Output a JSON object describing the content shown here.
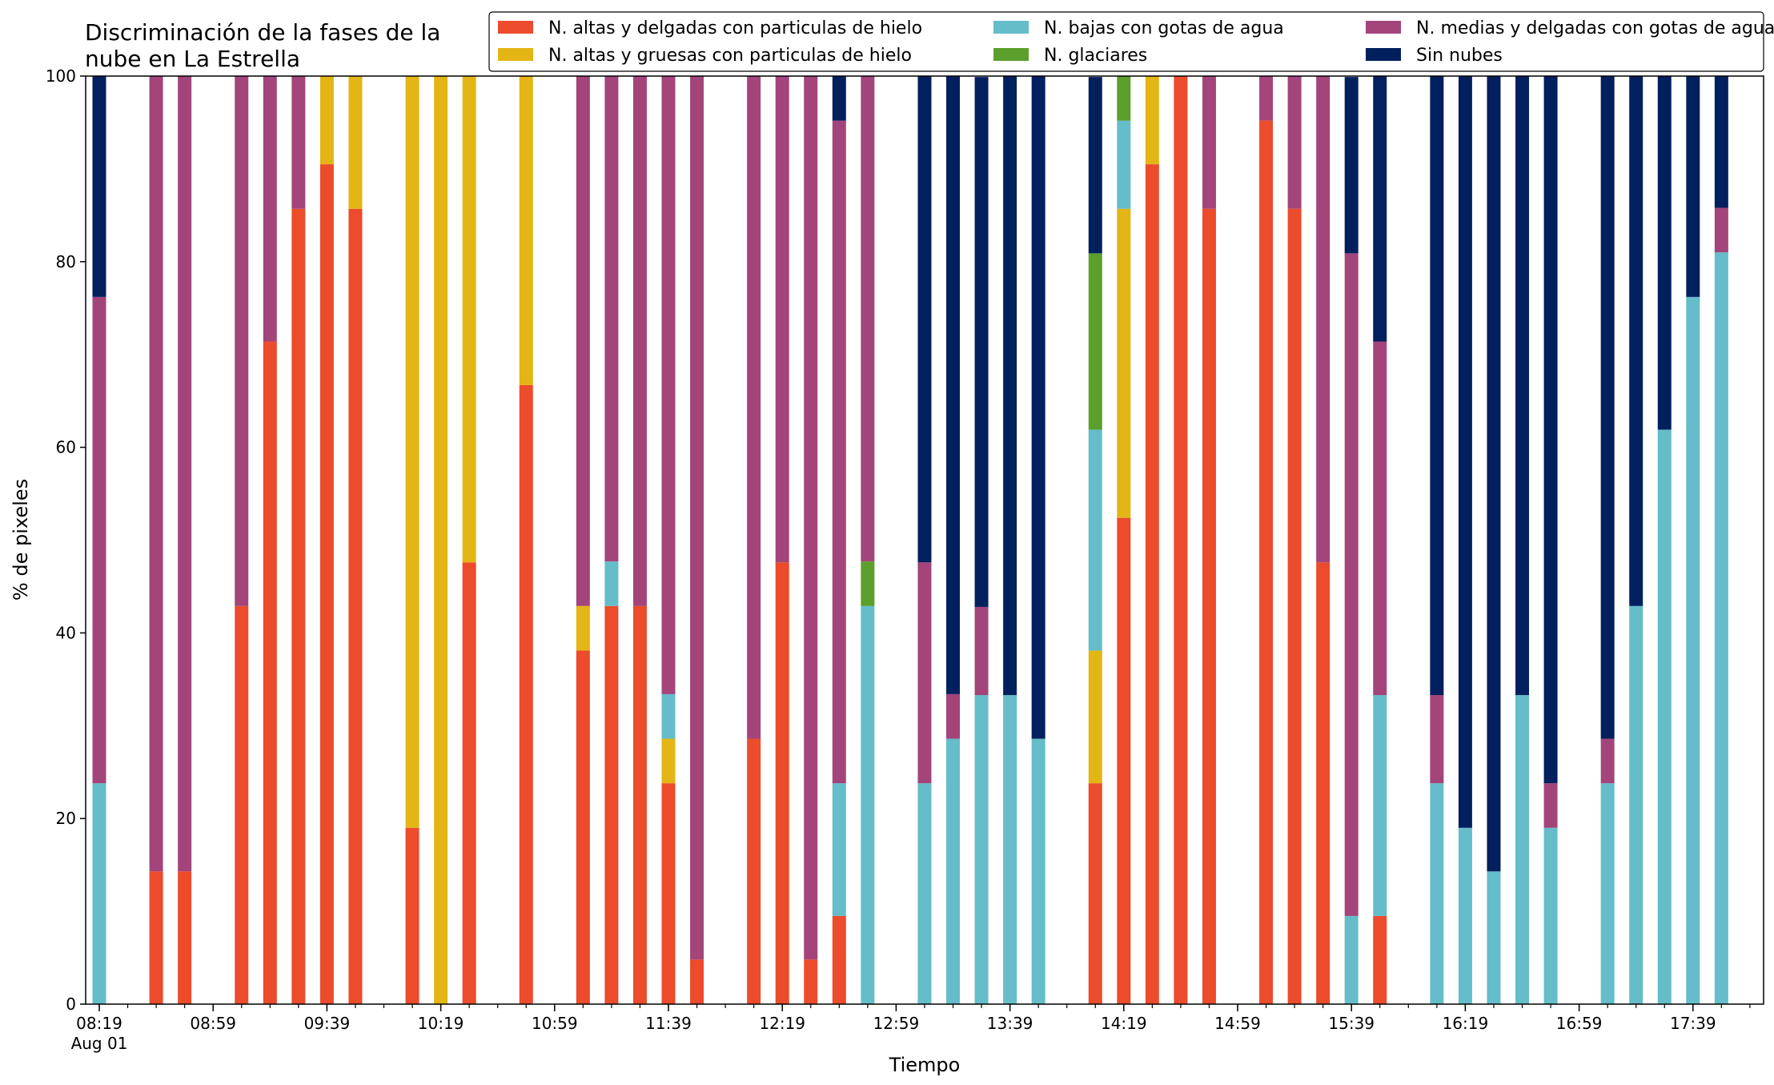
{
  "chart_data": {
    "type": "bar",
    "stacked": true,
    "title": "Discriminación de la fases de la nube en La Estrella",
    "title_lines": [
      "Discriminación de la fases de la",
      "nube en La Estrella"
    ],
    "xlabel": "Tiempo",
    "ylabel": "% de pixeles",
    "ylim": [
      0,
      100
    ],
    "y_ticks": [
      0,
      20,
      40,
      60,
      80,
      100
    ],
    "x_ticks": [
      {
        "label": "08:19",
        "sublabel": "Aug 01",
        "slot": 0
      },
      {
        "label": "08:59",
        "slot": 4
      },
      {
        "label": "09:39",
        "slot": 8
      },
      {
        "label": "10:19",
        "slot": 12
      },
      {
        "label": "10:59",
        "slot": 16
      },
      {
        "label": "11:39",
        "slot": 20
      },
      {
        "label": "12:19",
        "slot": 24
      },
      {
        "label": "12:59",
        "slot": 28
      },
      {
        "label": "13:39",
        "slot": 32
      },
      {
        "label": "14:19",
        "slot": 36
      },
      {
        "label": "14:59",
        "slot": 40
      },
      {
        "label": "15:39",
        "slot": 44
      },
      {
        "label": "16:19",
        "slot": 48
      },
      {
        "label": "16:59",
        "slot": 52
      },
      {
        "label": "17:39",
        "slot": 56
      }
    ],
    "slot_count": 58,
    "legend_position": "top-right",
    "legend_entries": [
      {
        "name": "N. altas y delgadas con particulas de hielo",
        "color": "#ec4b2c"
      },
      {
        "name": "N. altas y gruesas con particulas de hielo",
        "color": "#e3b515"
      },
      {
        "name": "N. bajas con gotas de agua",
        "color": "#64bdc9"
      },
      {
        "name": "N. glaciares",
        "color": "#5c9f2c"
      },
      {
        "name": "N. medias y delgadas con gotas de agua",
        "color": "#a3457a"
      },
      {
        "name": "Sin nubes",
        "color": "#02205e"
      }
    ],
    "stack_order": [
      "N. altas y delgadas con particulas de hielo",
      "N. altas y gruesas con particulas de hielo",
      "N. bajas con gotas de agua",
      "N. glaciares",
      "N. medias y delgadas con gotas de agua",
      "Sin nubes"
    ],
    "bars": [
      {
        "slot": 0,
        "values": [
          0,
          0,
          23.8,
          0,
          52.4,
          23.8
        ]
      },
      {
        "slot": 2,
        "values": [
          14.3,
          0,
          0,
          0,
          85.7,
          0
        ]
      },
      {
        "slot": 3,
        "values": [
          14.3,
          0,
          0,
          0,
          85.7,
          0
        ]
      },
      {
        "slot": 5,
        "values": [
          42.9,
          0,
          0,
          0,
          57.1,
          0
        ]
      },
      {
        "slot": 6,
        "values": [
          71.4,
          0,
          0,
          0,
          28.6,
          0
        ]
      },
      {
        "slot": 7,
        "values": [
          85.7,
          0,
          0,
          0,
          14.3,
          0
        ]
      },
      {
        "slot": 8,
        "values": [
          90.5,
          9.5,
          0,
          0,
          0,
          0
        ]
      },
      {
        "slot": 9,
        "values": [
          85.7,
          14.3,
          0,
          0,
          0,
          0
        ]
      },
      {
        "slot": 11,
        "values": [
          19.0,
          81.0,
          0,
          0,
          0,
          0
        ]
      },
      {
        "slot": 12,
        "values": [
          0,
          100,
          0,
          0,
          0,
          0
        ]
      },
      {
        "slot": 13,
        "values": [
          47.6,
          52.4,
          0,
          0,
          0,
          0
        ]
      },
      {
        "slot": 15,
        "values": [
          66.7,
          33.3,
          0,
          0,
          0,
          0
        ]
      },
      {
        "slot": 17,
        "values": [
          38.1,
          4.8,
          0,
          0,
          57.1,
          0
        ]
      },
      {
        "slot": 18,
        "values": [
          42.9,
          0,
          4.8,
          0,
          52.4,
          0
        ]
      },
      {
        "slot": 19,
        "values": [
          42.9,
          0,
          0,
          0,
          57.1,
          0
        ]
      },
      {
        "slot": 20,
        "values": [
          23.8,
          4.8,
          4.8,
          0,
          66.7,
          0
        ]
      },
      {
        "slot": 21,
        "values": [
          4.8,
          0,
          0,
          0,
          95.2,
          0
        ]
      },
      {
        "slot": 23,
        "values": [
          28.6,
          0,
          0,
          0,
          71.4,
          0
        ]
      },
      {
        "slot": 24,
        "values": [
          47.6,
          0,
          0,
          0,
          52.4,
          0
        ]
      },
      {
        "slot": 25,
        "values": [
          4.8,
          0,
          0,
          0,
          95.2,
          0
        ]
      },
      {
        "slot": 26,
        "values": [
          9.5,
          0,
          14.3,
          0,
          71.4,
          4.8
        ]
      },
      {
        "slot": 27,
        "values": [
          0,
          0,
          42.9,
          4.8,
          52.4,
          0
        ]
      },
      {
        "slot": 29,
        "values": [
          0,
          0,
          23.8,
          0,
          23.8,
          52.4
        ]
      },
      {
        "slot": 30,
        "values": [
          0,
          0,
          28.6,
          0,
          4.8,
          66.7
        ]
      },
      {
        "slot": 31,
        "values": [
          0,
          0,
          33.3,
          0,
          9.5,
          57.1
        ]
      },
      {
        "slot": 32,
        "values": [
          0,
          0,
          33.3,
          0,
          0,
          66.7
        ]
      },
      {
        "slot": 33,
        "values": [
          0,
          0,
          28.6,
          0,
          0,
          71.4
        ]
      },
      {
        "slot": 35,
        "values": [
          23.8,
          14.3,
          23.8,
          19.0,
          0,
          19.0
        ]
      },
      {
        "slot": 36,
        "values": [
          52.4,
          33.3,
          9.5,
          4.8,
          0,
          0
        ]
      },
      {
        "slot": 37,
        "values": [
          90.5,
          9.5,
          0,
          0,
          0,
          0
        ]
      },
      {
        "slot": 38,
        "values": [
          100,
          0,
          0,
          0,
          0,
          0
        ]
      },
      {
        "slot": 39,
        "values": [
          85.7,
          0,
          0,
          0,
          14.3,
          0
        ]
      },
      {
        "slot": 41,
        "values": [
          95.2,
          0,
          0,
          0,
          4.8,
          0
        ]
      },
      {
        "slot": 42,
        "values": [
          85.7,
          0,
          0,
          0,
          14.3,
          0
        ]
      },
      {
        "slot": 43,
        "values": [
          47.6,
          0,
          0,
          0,
          52.4,
          0
        ]
      },
      {
        "slot": 44,
        "values": [
          0,
          0,
          9.5,
          0,
          71.4,
          19.0
        ]
      },
      {
        "slot": 45,
        "values": [
          9.5,
          0,
          23.8,
          0,
          38.1,
          28.6
        ]
      },
      {
        "slot": 47,
        "values": [
          0,
          0,
          23.8,
          0,
          9.5,
          66.7
        ]
      },
      {
        "slot": 48,
        "values": [
          0,
          0,
          19.0,
          0,
          0,
          81.0
        ]
      },
      {
        "slot": 49,
        "values": [
          0,
          0,
          14.3,
          0,
          0,
          85.7
        ]
      },
      {
        "slot": 50,
        "values": [
          0,
          0,
          33.3,
          0,
          0,
          66.7
        ]
      },
      {
        "slot": 51,
        "values": [
          0,
          0,
          19.0,
          0,
          4.8,
          76.2
        ]
      },
      {
        "slot": 53,
        "values": [
          0,
          0,
          23.8,
          0,
          4.8,
          71.4
        ]
      },
      {
        "slot": 54,
        "values": [
          0,
          0,
          42.9,
          0,
          0,
          57.1
        ]
      },
      {
        "slot": 55,
        "values": [
          0,
          0,
          61.9,
          0,
          0,
          38.1
        ]
      },
      {
        "slot": 56,
        "values": [
          0,
          0,
          76.2,
          0,
          0,
          23.8
        ]
      },
      {
        "slot": 57,
        "values": [
          0,
          0,
          81.0,
          0,
          4.8,
          14.3
        ]
      }
    ]
  }
}
